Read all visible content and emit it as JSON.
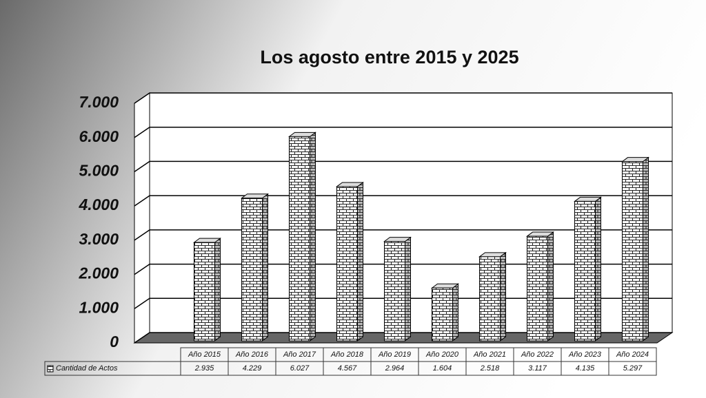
{
  "chart_data": {
    "type": "bar",
    "title": "Los agosto entre 2015 y 2025",
    "categories": [
      "Año 2015",
      "Año 2016",
      "Año 2017",
      "Año 2018",
      "Año 2019",
      "Año 2020",
      "Año 2021",
      "Año 2022",
      "Año 2023",
      "Año 2024"
    ],
    "series": [
      {
        "name": "Cantidad de Actos",
        "color": "#ffffff",
        "values": [
          2935,
          4229,
          6027,
          4567,
          2964,
          1604,
          2518,
          3117,
          4135,
          5297
        ],
        "value_labels": [
          "2.935",
          "4.229",
          "6.027",
          "4.567",
          "2.964",
          "1.604",
          "2.518",
          "3.117",
          "4.135",
          "5.297"
        ]
      }
    ],
    "ylim": [
      0,
      7000
    ],
    "yticks": [
      0,
      {
        "value": 1000,
        "label": "1.000"
      },
      {
        "value": 2000,
        "label": "2.000"
      },
      {
        "value": 3000,
        "label": "3.000"
      },
      {
        "value": 4000,
        "label": "4.000"
      },
      {
        "value": 5000,
        "label": "5.000"
      },
      {
        "value": 6000,
        "label": "6.000"
      },
      {
        "value": 7000,
        "label": "7.000"
      }
    ],
    "grid": true
  }
}
